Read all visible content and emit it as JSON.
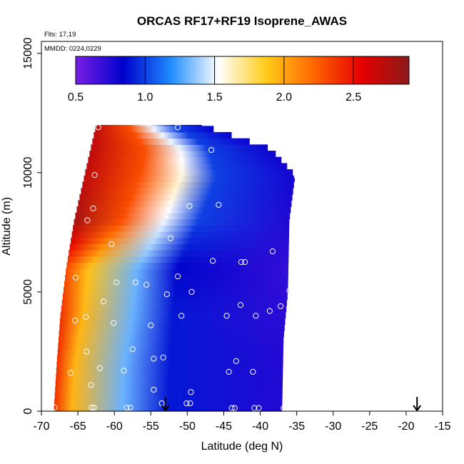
{
  "chart_data": {
    "type": "heatmap",
    "title": "ORCAS RF17+RF19 Isoprene_AWAS",
    "annotations": [
      "Flts: 17,19",
      "MMDD: 0224,0229"
    ],
    "xlabel": "Latitude (deg N)",
    "ylabel": "Altitude (m)",
    "xlim": [
      -70,
      -15
    ],
    "ylim": [
      0,
      15500
    ],
    "x_ticks": [
      -70,
      -65,
      -60,
      -55,
      -50,
      -45,
      -40,
      -35,
      -30,
      -25,
      -20,
      -15
    ],
    "x_tick_labels": [
      "-70",
      "-65",
      "-60",
      "-55",
      "-50",
      "-45",
      "-40",
      "-35",
      "-30",
      "-25",
      "-20",
      "-15"
    ],
    "y_ticks": [
      0,
      5000,
      10000,
      15000
    ],
    "y_tick_labels": [
      "0",
      "5000",
      "10000",
      "15000"
    ],
    "grid": false,
    "colorbar": {
      "placement": "top-inside",
      "range": [
        0.5,
        2.9
      ],
      "ticks": [
        0.5,
        1.0,
        1.5,
        2.0,
        2.5
      ],
      "tick_labels": [
        "0.5",
        "1.0",
        "1.5",
        "2.0",
        "2.5"
      ],
      "colors": [
        "#7a1fe6",
        "#0000cc",
        "#1e8cff",
        "#ffffff",
        "#ffcc1a",
        "#ff6600",
        "#e60000",
        "#8b1a1a"
      ]
    },
    "field_envelope": {
      "left_edge": [
        [
          0,
          -68.3
        ],
        [
          2000,
          -67.9
        ],
        [
          4000,
          -67.4
        ],
        [
          6000,
          -66.6
        ],
        [
          8000,
          -65.5
        ],
        [
          10000,
          -64.0
        ],
        [
          12000,
          -62.5
        ]
      ],
      "right_edge": [
        [
          0,
          -37.0
        ],
        [
          3000,
          -36.8
        ],
        [
          5000,
          -36.2
        ],
        [
          8000,
          -36.0
        ],
        [
          9900,
          -35.2
        ],
        [
          11000,
          -38.5
        ],
        [
          12000,
          -48.0
        ]
      ]
    },
    "field_profile": {
      "altitudes": [
        0,
        2000,
        4000,
        6000,
        8000,
        9500,
        11000,
        12000
      ],
      "gradient_stops": [
        [
          [
            0,
            2.4
          ],
          [
            0.08,
            1.95
          ],
          [
            0.3,
            1.3
          ],
          [
            0.5,
            0.9
          ],
          [
            1,
            0.75
          ]
        ],
        [
          [
            0,
            2.4
          ],
          [
            0.08,
            1.95
          ],
          [
            0.3,
            1.3
          ],
          [
            0.5,
            0.9
          ],
          [
            1,
            0.75
          ]
        ],
        [
          [
            0,
            2.4
          ],
          [
            0.1,
            1.95
          ],
          [
            0.32,
            1.3
          ],
          [
            0.5,
            0.9
          ],
          [
            1,
            0.72
          ]
        ],
        [
          [
            0,
            2.3
          ],
          [
            0.1,
            1.9
          ],
          [
            0.32,
            1.3
          ],
          [
            0.5,
            0.85
          ],
          [
            1,
            0.7
          ]
        ],
        [
          [
            0,
            2.8
          ],
          [
            0.22,
            2.3
          ],
          [
            0.42,
            1.5
          ],
          [
            0.58,
            1.0
          ],
          [
            1,
            0.75
          ]
        ],
        [
          [
            0,
            2.7
          ],
          [
            0.25,
            2.3
          ],
          [
            0.45,
            1.6
          ],
          [
            0.62,
            1.0
          ],
          [
            1,
            0.78
          ]
        ],
        [
          [
            0,
            2.7
          ],
          [
            0.3,
            2.3
          ],
          [
            0.5,
            1.5
          ],
          [
            0.65,
            1.0
          ],
          [
            1,
            0.8
          ]
        ],
        [
          [
            0,
            2.7
          ],
          [
            0.3,
            2.3
          ],
          [
            0.5,
            1.5
          ],
          [
            0.72,
            1.0
          ],
          [
            1,
            0.82
          ]
        ]
      ]
    },
    "samples": [
      [
        -68.2,
        150
      ],
      [
        -63.1,
        150
      ],
      [
        -62.8,
        150
      ],
      [
        -58.3,
        150
      ],
      [
        -57.8,
        150
      ],
      [
        -53.5,
        330
      ],
      [
        -50.1,
        330
      ],
      [
        -49.6,
        330
      ],
      [
        -43.9,
        130
      ],
      [
        -43.5,
        130
      ],
      [
        -40.8,
        130
      ],
      [
        -40.2,
        130
      ],
      [
        -36.8,
        130
      ],
      [
        -49.5,
        800
      ],
      [
        -54.6,
        900
      ],
      [
        -63.2,
        1100
      ],
      [
        -66.0,
        1600
      ],
      [
        -62.0,
        1800
      ],
      [
        -58.7,
        1700
      ],
      [
        -44.3,
        1650
      ],
      [
        -41.0,
        1650
      ],
      [
        -63.8,
        2500
      ],
      [
        -57.5,
        2600
      ],
      [
        -54.6,
        2200
      ],
      [
        -53.3,
        2250
      ],
      [
        -43.3,
        2100
      ],
      [
        -55.0,
        3600
      ],
      [
        -60.1,
        3700
      ],
      [
        -65.4,
        3800
      ],
      [
        -63.9,
        3950
      ],
      [
        -50.8,
        4000
      ],
      [
        -44.6,
        4000
      ],
      [
        -40.6,
        4000
      ],
      [
        -38.7,
        4200
      ],
      [
        -37.2,
        4400
      ],
      [
        -42.7,
        4450
      ],
      [
        -61.5,
        4600
      ],
      [
        -65.3,
        5600
      ],
      [
        -59.7,
        5400
      ],
      [
        -57.1,
        5400
      ],
      [
        -55.6,
        5300
      ],
      [
        -52.8,
        4900
      ],
      [
        -49.4,
        5000
      ],
      [
        -36.0,
        5050
      ],
      [
        -51.3,
        5650
      ],
      [
        -46.5,
        6300
      ],
      [
        -42.6,
        6250
      ],
      [
        -42.1,
        6250
      ],
      [
        -38.3,
        6700
      ],
      [
        -60.4,
        7000
      ],
      [
        -52.3,
        7250
      ],
      [
        -63.7,
        8000
      ],
      [
        -62.9,
        8500
      ],
      [
        -49.7,
        8600
      ],
      [
        -45.7,
        8650
      ],
      [
        -62.7,
        9900
      ],
      [
        -35.0,
        9850
      ],
      [
        -46.7,
        10950
      ],
      [
        -62.2,
        11900
      ],
      [
        -51.3,
        11900
      ]
    ],
    "flight_markers": [
      -53.0,
      -18.5
    ]
  }
}
